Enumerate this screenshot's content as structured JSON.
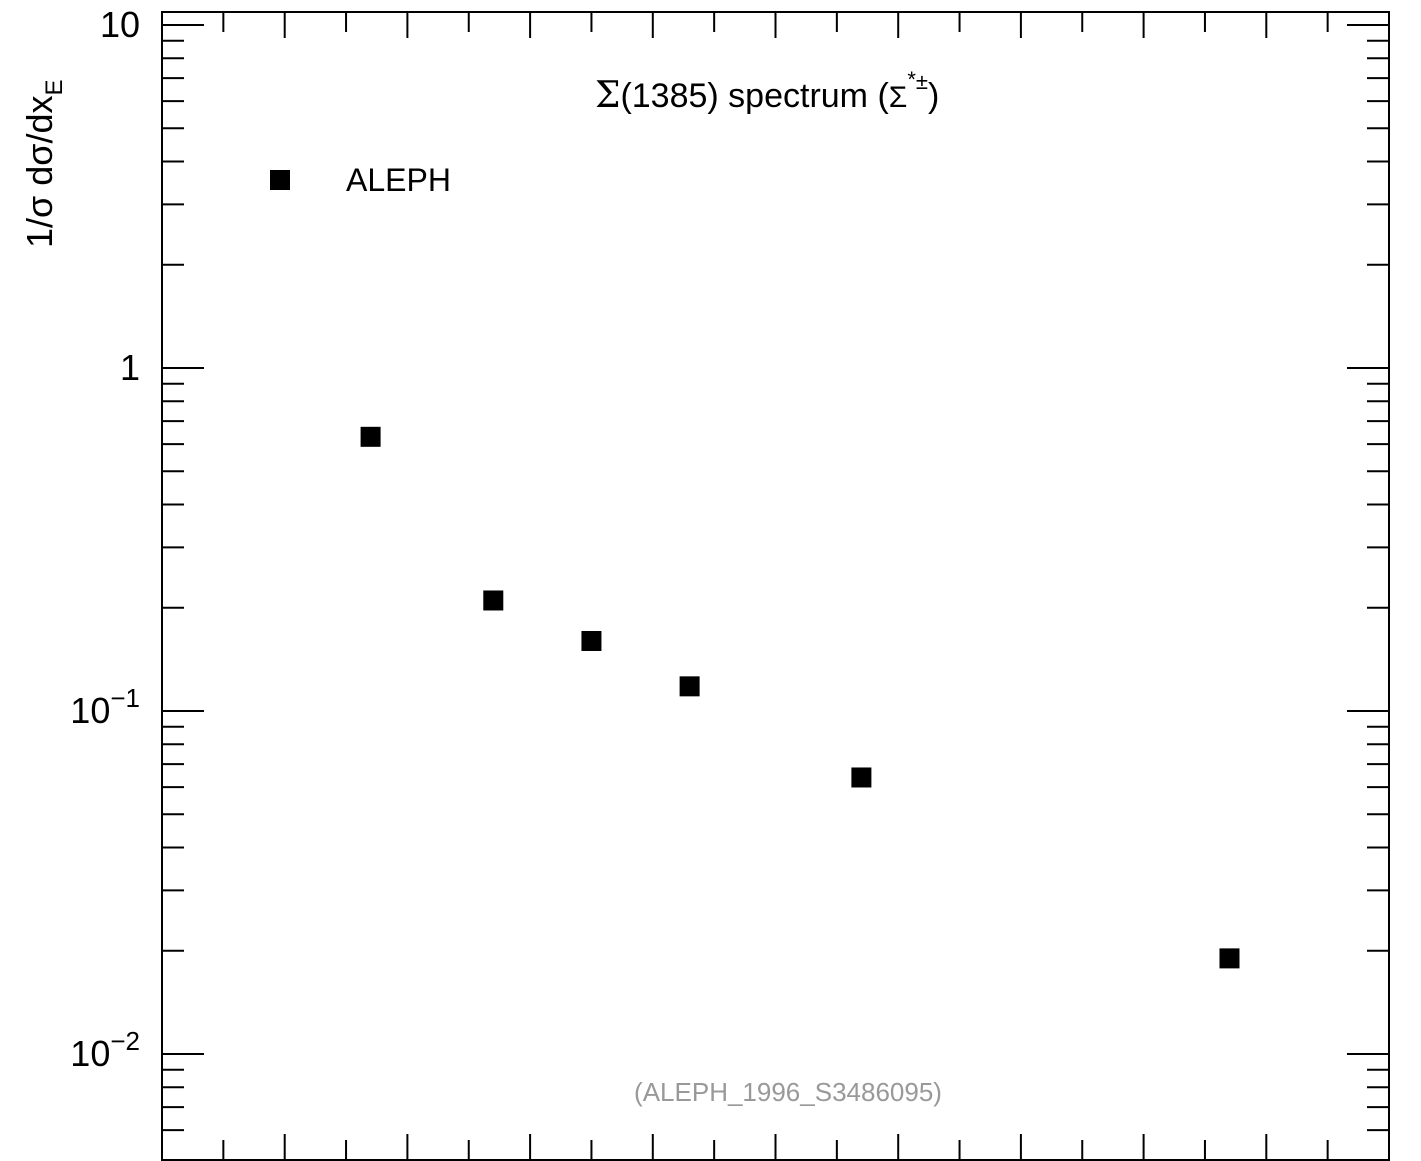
{
  "chart_data": {
    "type": "scatter",
    "title": "(1385) spectrum (",
    "title_symbol": "Σ",
    "title_particle_base": "Σ",
    "title_particle_sup_star": "*",
    "title_particle_sup_pm": "±",
    "title_close": ")",
    "ylabel": "1/σ dσ/dx",
    "ylabel_sub": "E",
    "xlabel": "",
    "yscale": "log",
    "ylim": [
      0.006,
      10
    ],
    "xlim": [
      0.0,
      1.0
    ],
    "grid": false,
    "legend": {
      "placement": "top-left",
      "marker": "square",
      "color": "#000000"
    },
    "watermark": "(ALEPH_1996_S3486095)",
    "y_ticks": [
      {
        "value": 10,
        "label": "10"
      },
      {
        "value": 1,
        "label": "1"
      },
      {
        "value": 0.1,
        "label_base": "10",
        "label_exp": "−1"
      },
      {
        "value": 0.01,
        "label_base": "10",
        "label_exp": "−2"
      }
    ],
    "series": [
      {
        "name": "ALEPH",
        "marker": "square",
        "color": "#000000",
        "x": [
          0.17,
          0.27,
          0.35,
          0.43,
          0.57,
          0.87
        ],
        "y": [
          0.63,
          0.21,
          0.16,
          0.118,
          0.064,
          0.019
        ]
      }
    ]
  }
}
